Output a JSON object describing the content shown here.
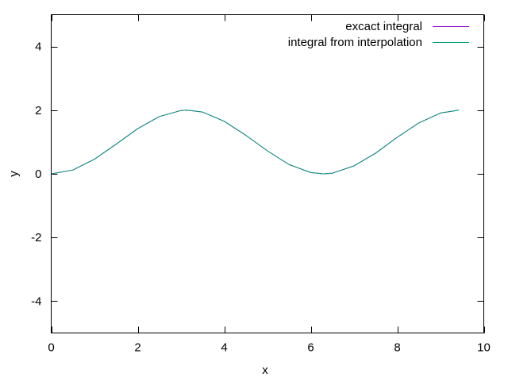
{
  "chart_data": {
    "type": "line",
    "title": "",
    "xlabel": "x",
    "ylabel": "y",
    "xlim": [
      0,
      10
    ],
    "ylim": [
      -5,
      5
    ],
    "xticks": [
      0,
      2,
      4,
      6,
      8,
      10
    ],
    "yticks": [
      -4,
      -2,
      0,
      2,
      4
    ],
    "grid": false,
    "legend_position": "top-right",
    "series": [
      {
        "name": "excact integral",
        "color": "#9400d3",
        "x": [
          0,
          0.5,
          1.0,
          1.5,
          2.0,
          2.5,
          3.0,
          3.1416,
          3.5,
          4.0,
          4.5,
          5.0,
          5.5,
          6.0,
          6.2832,
          6.5,
          7.0,
          7.5,
          8.0,
          8.5,
          9.0,
          9.4248
        ],
        "y": [
          0,
          0.12,
          0.46,
          0.93,
          1.42,
          1.8,
          1.99,
          2.0,
          1.94,
          1.65,
          1.21,
          0.72,
          0.29,
          0.04,
          0,
          0.02,
          0.25,
          0.65,
          1.15,
          1.6,
          1.91,
          2.0
        ]
      },
      {
        "name": "integral from interpolation",
        "color": "#009e73",
        "x": [
          0,
          0.5,
          1.0,
          1.5,
          2.0,
          2.5,
          3.0,
          3.1416,
          3.5,
          4.0,
          4.5,
          5.0,
          5.5,
          6.0,
          6.2832,
          6.5,
          7.0,
          7.5,
          8.0,
          8.5,
          9.0,
          9.4248
        ],
        "y": [
          0,
          0.12,
          0.46,
          0.93,
          1.42,
          1.8,
          1.99,
          2.0,
          1.94,
          1.65,
          1.21,
          0.72,
          0.29,
          0.04,
          0,
          0.02,
          0.25,
          0.65,
          1.15,
          1.6,
          1.91,
          2.0
        ]
      }
    ]
  }
}
